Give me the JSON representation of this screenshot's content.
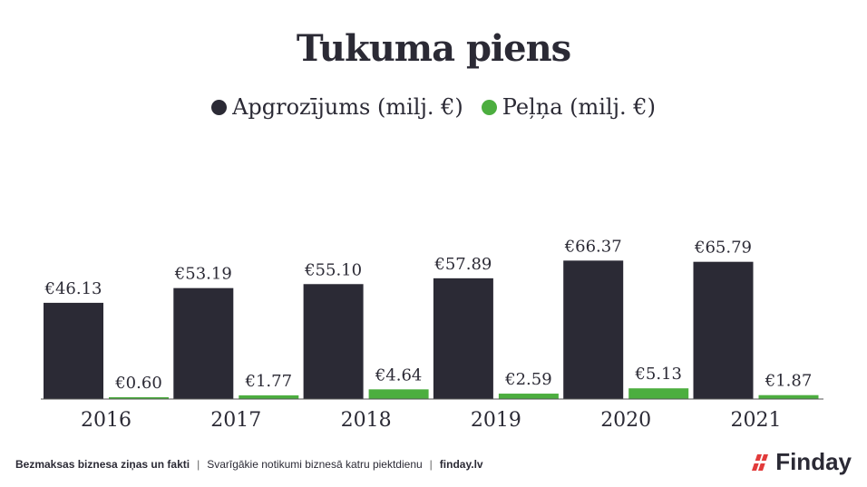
{
  "colors": {
    "revenue": "#2b2a35",
    "profit": "#4cae3f",
    "accent_red": "#e23b3b",
    "axis": "#555555"
  },
  "title": "Tukuma piens",
  "legend": {
    "revenue": "Apgrozījums (milj. €)",
    "profit": "Peļņa (milj. €)"
  },
  "chart_data": {
    "type": "bar",
    "categories": [
      "2016",
      "2017",
      "2018",
      "2019",
      "2020",
      "2021"
    ],
    "series": [
      {
        "name": "Apgrozījums (milj. €)",
        "values": [
          46.13,
          53.19,
          55.1,
          57.89,
          66.37,
          65.79
        ],
        "labels": [
          "€46.13",
          "€53.19",
          "€55.10",
          "€57.89",
          "€66.37",
          "€65.79"
        ]
      },
      {
        "name": "Peļņa (milj. €)",
        "values": [
          0.6,
          1.77,
          4.64,
          2.59,
          5.13,
          1.87
        ],
        "labels": [
          "€0.60",
          "€1.77",
          "€4.64",
          "€2.59",
          "€5.13",
          "€1.87"
        ]
      }
    ],
    "ylim": [
      0,
      100
    ],
    "grid": false,
    "legend_position": "top"
  },
  "footer": {
    "left": "Bezmaksas biznesa ziņas un fakti",
    "middle": "Svarīgākie notikumi biznesā katru piektdienu",
    "right": "finday.lv",
    "separator": "|"
  },
  "logo": {
    "text": "Finday",
    "icon": "finday-slash-icon"
  }
}
